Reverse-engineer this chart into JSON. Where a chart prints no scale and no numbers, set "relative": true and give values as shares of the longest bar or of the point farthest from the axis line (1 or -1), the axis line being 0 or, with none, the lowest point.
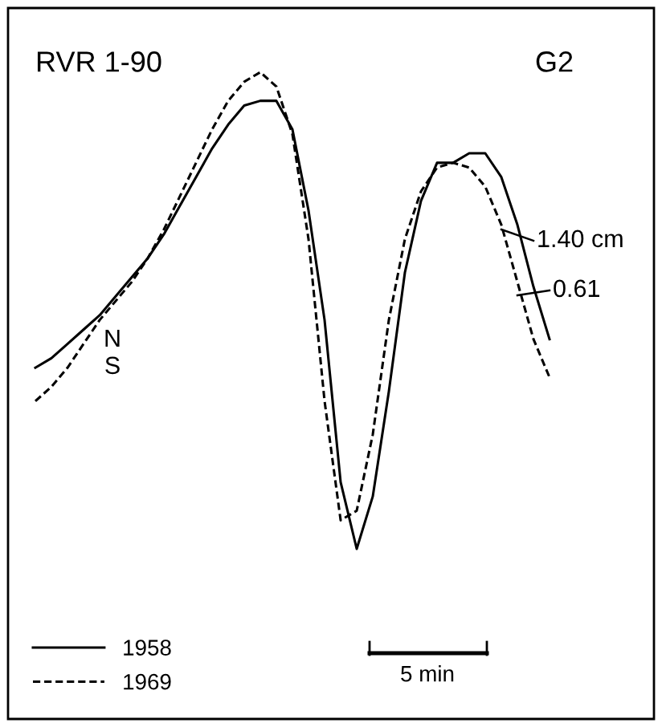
{
  "chart_data": {
    "type": "line",
    "title": "RVR 1-90",
    "relative": true,
    "legend": "bottom left",
    "categories": [
      null,
      null,
      null,
      null,
      null,
      null,
      null,
      null,
      null,
      null,
      null,
      null,
      null,
      null,
      null,
      null,
      null,
      null,
      null,
      null,
      null,
      null,
      null,
      null,
      null,
      null,
      null,
      null,
      null,
      null,
      null,
      null,
      null
    ],
    "series": [
      {
        "name": "1958",
        "color": "#000000",
        "line_style": "solid",
        "values": [
          0.38,
          0.4,
          0.43,
          0.46,
          0.49,
          0.53,
          0.57,
          0.61,
          0.66,
          0.72,
          0.78,
          0.84,
          0.89,
          0.93,
          0.94,
          0.94,
          0.88,
          0.71,
          0.48,
          0.14,
          0,
          0.11,
          0.33,
          0.58,
          0.73,
          0.81,
          0.81,
          0.83,
          0.83,
          0.78,
          0.68,
          0.55,
          0.44
        ]
      },
      {
        "name": "1969",
        "color": "#000000",
        "line_style": "dashed",
        "values": [
          0.31,
          0.34,
          0.38,
          0.43,
          0.48,
          0.52,
          0.56,
          0.61,
          0.67,
          0.74,
          0.81,
          0.88,
          0.94,
          0.98,
          1,
          0.97,
          0.87,
          0.65,
          0.31,
          0.06,
          0.08,
          0.24,
          0.48,
          0.65,
          0.75,
          0.8,
          0.81,
          0.8,
          0.76,
          0.68,
          0.56,
          0.44,
          0.36
        ]
      }
    ],
    "annotations": [
      "G2",
      "N",
      "S",
      "1.40 cm",
      "0.61",
      "5 min"
    ]
  }
}
